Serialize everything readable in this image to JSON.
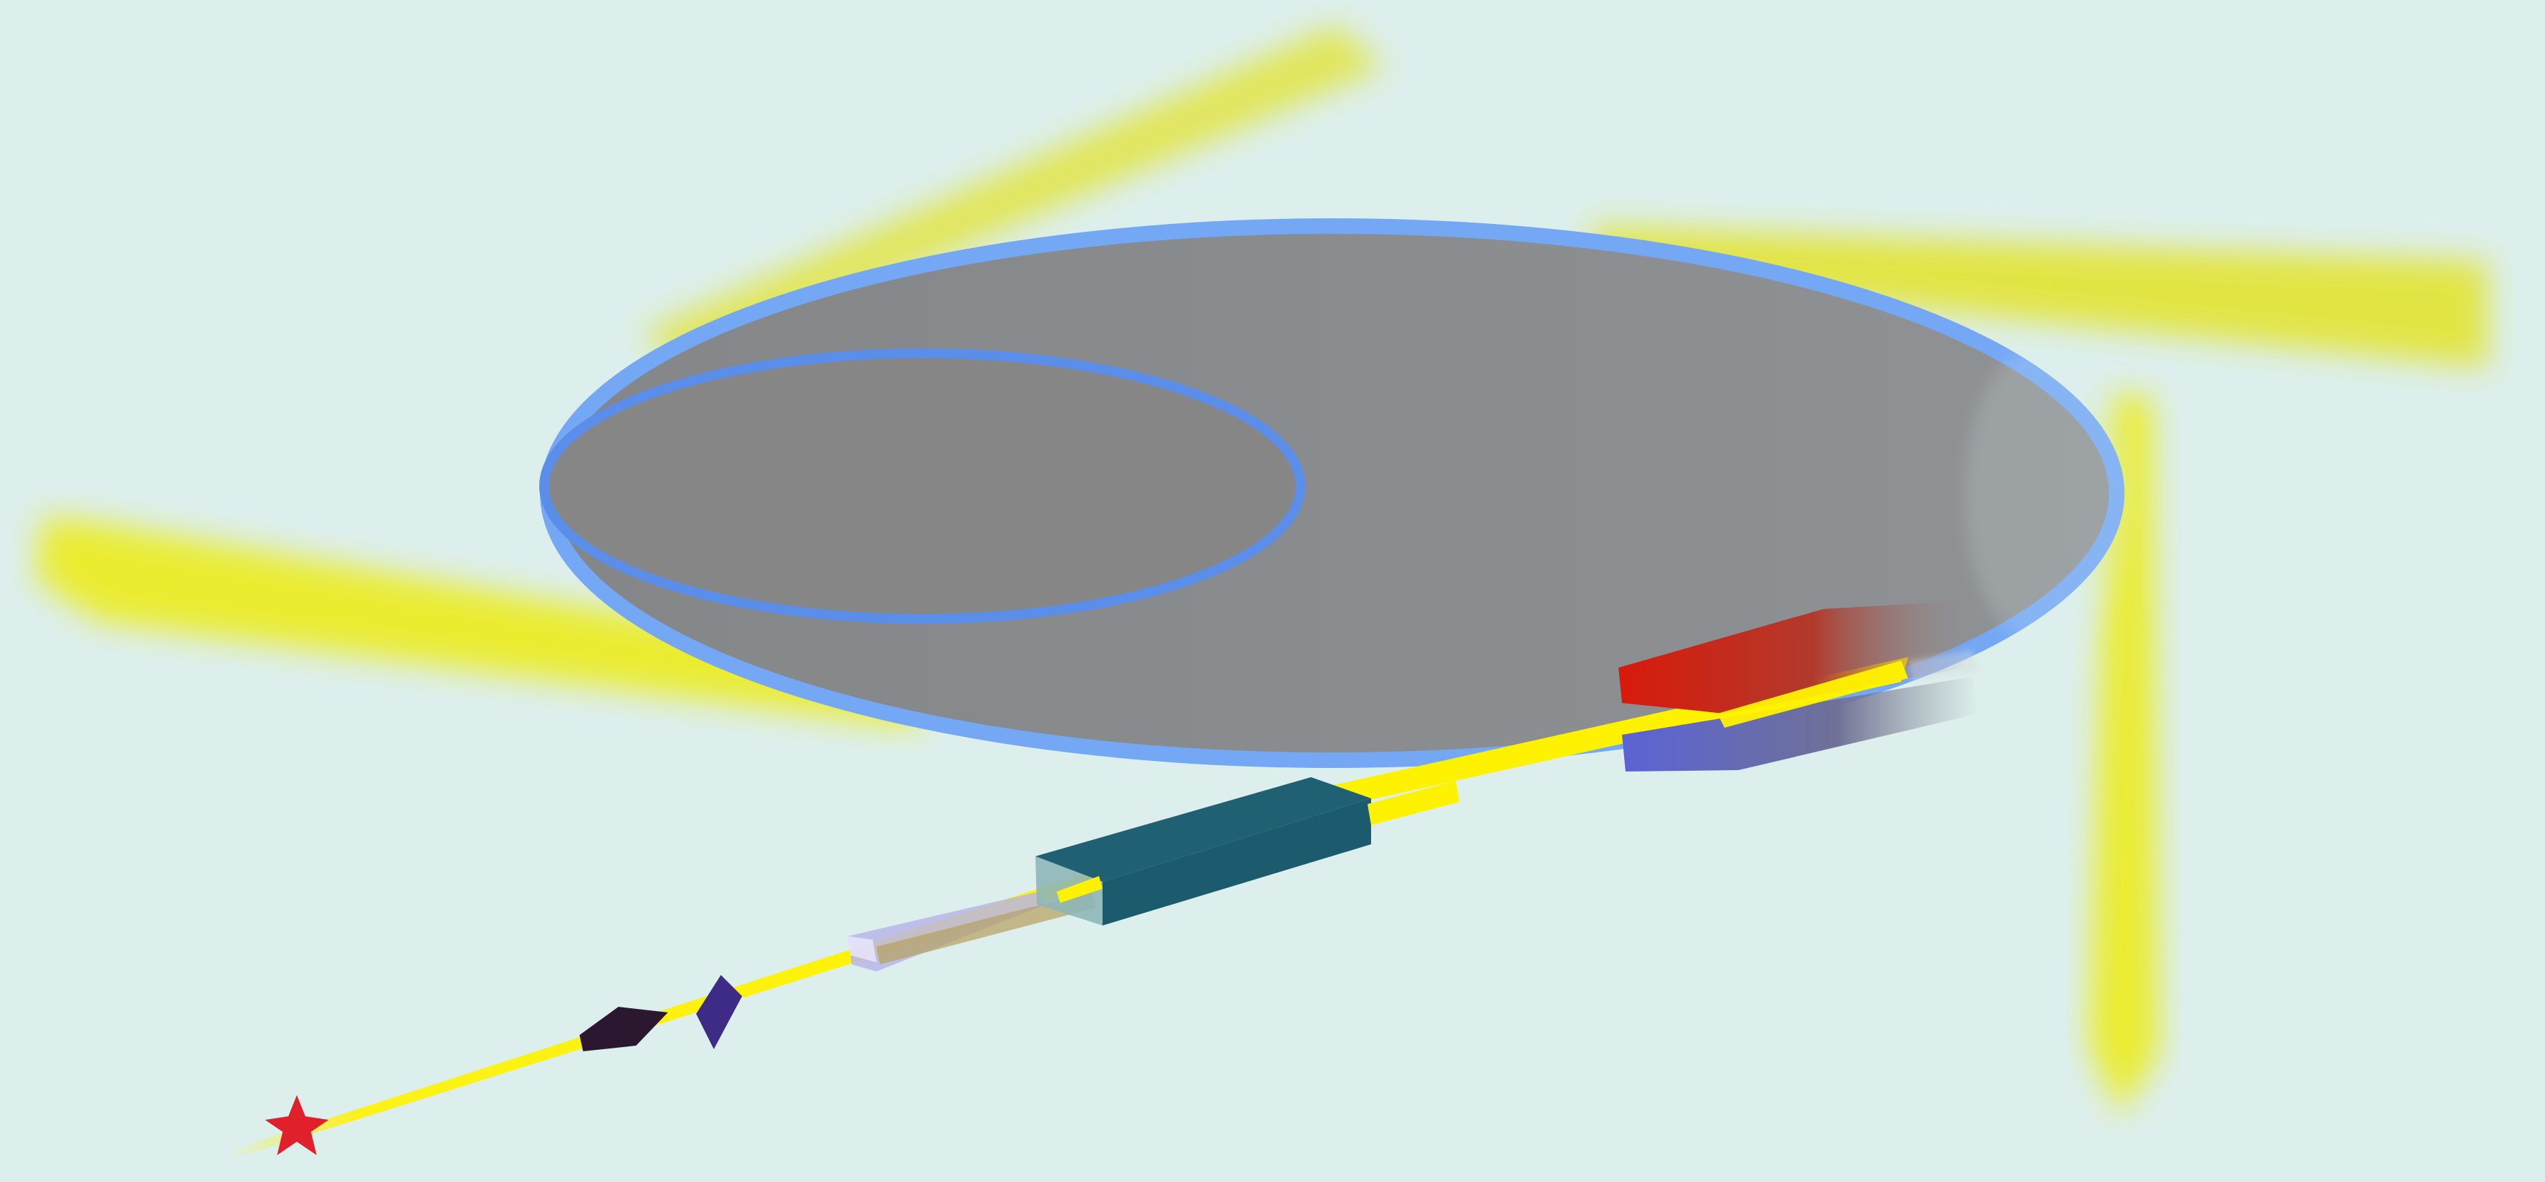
{
  "figure": {
    "kind": "accelerator-beamline-schematic",
    "background_color": "#dcefed",
    "colors": {
      "beam": "#fff200",
      "beam_glow": "#e6e625",
      "ring_fill": "#8a8c8f",
      "ring_outline": "#74a8f5",
      "inner_ring_outline": "#5a8ee8",
      "linac": "#1f6073",
      "linac_front": "#8fb6b8",
      "bend_magnet_top": "#d81a0a",
      "bend_magnet_bottom": "#5b63d6",
      "chamber": "#c9c3f2",
      "focus_element_dark": "#2b1830",
      "focus_element_purple": "#3e2b86",
      "source_star": "#e0202a"
    },
    "components": [
      {
        "id": "source",
        "icon": "star-icon"
      },
      {
        "id": "focusing-element-1",
        "icon": "diamond-icon"
      },
      {
        "id": "focusing-element-2",
        "icon": "diamond-icon"
      },
      {
        "id": "injection-chamber",
        "icon": "box-icon"
      },
      {
        "id": "linac",
        "icon": "box-icon"
      },
      {
        "id": "bending-magnet",
        "icon": "magnet-icon"
      },
      {
        "id": "storage-ring",
        "icon": "ring-icon"
      },
      {
        "id": "output-beams",
        "count": 4
      }
    ]
  }
}
